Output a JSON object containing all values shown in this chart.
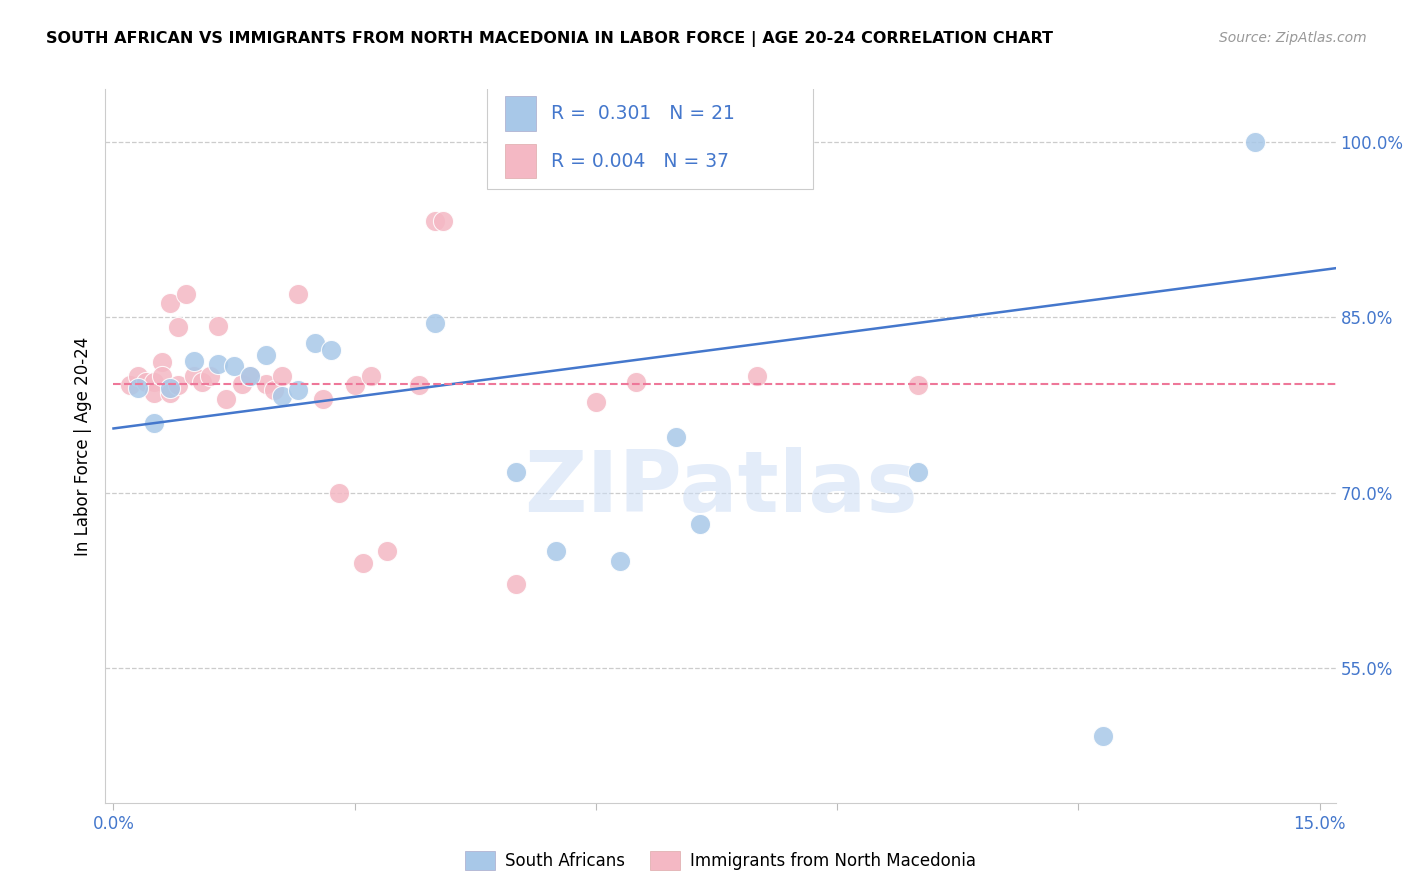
{
  "title": "SOUTH AFRICAN VS IMMIGRANTS FROM NORTH MACEDONIA IN LABOR FORCE | AGE 20-24 CORRELATION CHART",
  "source": "Source: ZipAtlas.com",
  "ylabel": "In Labor Force | Age 20-24",
  "xlim": [
    -0.001,
    0.152
  ],
  "ylim": [
    0.435,
    1.045
  ],
  "xtick_vals": [
    0.0,
    0.03,
    0.06,
    0.09,
    0.12,
    0.15
  ],
  "xtick_labels": [
    "0.0%",
    "",
    "",
    "",
    "",
    "15.0%"
  ],
  "ytick_positions": [
    0.55,
    0.7,
    0.85,
    1.0
  ],
  "ytick_labels": [
    "55.0%",
    "70.0%",
    "85.0%",
    "100.0%"
  ],
  "blue_R": "0.301",
  "blue_N": "21",
  "pink_R": "0.004",
  "pink_N": "37",
  "blue_dot_color": "#A8C8E8",
  "pink_dot_color": "#F4B8C4",
  "blue_line_color": "#4477CC",
  "pink_line_color": "#EE7799",
  "legend_text_color": "#4477CC",
  "watermark": "ZIPatlas",
  "blue_scatter_x": [
    0.003,
    0.005,
    0.007,
    0.01,
    0.013,
    0.015,
    0.017,
    0.019,
    0.021,
    0.023,
    0.025,
    0.027,
    0.04,
    0.05,
    0.055,
    0.063,
    0.07,
    0.073,
    0.1,
    0.123,
    0.142
  ],
  "blue_scatter_y": [
    0.79,
    0.76,
    0.79,
    0.813,
    0.81,
    0.808,
    0.8,
    0.818,
    0.783,
    0.788,
    0.828,
    0.822,
    0.845,
    0.718,
    0.65,
    0.642,
    0.748,
    0.673,
    0.718,
    0.492,
    1.0
  ],
  "pink_scatter_x": [
    0.002,
    0.003,
    0.004,
    0.005,
    0.005,
    0.006,
    0.006,
    0.007,
    0.007,
    0.008,
    0.008,
    0.009,
    0.01,
    0.011,
    0.012,
    0.013,
    0.014,
    0.016,
    0.017,
    0.019,
    0.02,
    0.021,
    0.023,
    0.026,
    0.028,
    0.03,
    0.031,
    0.032,
    0.034,
    0.038,
    0.04,
    0.041,
    0.05,
    0.06,
    0.065,
    0.08,
    0.1
  ],
  "pink_scatter_y": [
    0.792,
    0.8,
    0.795,
    0.795,
    0.785,
    0.812,
    0.8,
    0.785,
    0.862,
    0.792,
    0.842,
    0.87,
    0.8,
    0.795,
    0.8,
    0.843,
    0.78,
    0.793,
    0.8,
    0.793,
    0.788,
    0.8,
    0.87,
    0.78,
    0.7,
    0.792,
    0.64,
    0.8,
    0.65,
    0.792,
    0.932,
    0.932,
    0.622,
    0.778,
    0.795,
    0.8,
    0.792
  ],
  "blue_trend_x": [
    0.0,
    0.152
  ],
  "blue_trend_y": [
    0.755,
    0.892
  ],
  "pink_trend_x": [
    0.0,
    0.152
  ],
  "pink_trend_y": [
    0.793,
    0.793
  ],
  "grid_color": "#CCCCCC",
  "background_color": "#FFFFFF"
}
